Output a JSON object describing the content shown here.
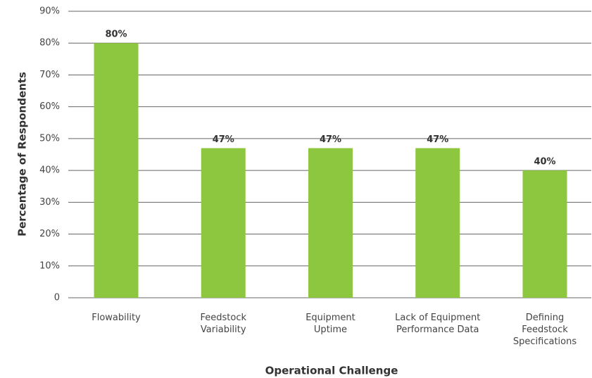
{
  "chart_data": {
    "type": "bar",
    "x_label": "Operational Challenge",
    "y_label": "Percentage of Respondents",
    "categories": [
      "Flowability",
      "Feedstock Variability",
      "Equipment Uptime",
      "Lack of Equipment Performance Data",
      "Defining Feedstock Specifications"
    ],
    "values": [
      80,
      47,
      47,
      47,
      40
    ],
    "value_labels": [
      "80%",
      "47%",
      "47%",
      "47%",
      "40%"
    ],
    "color": "#8dc63f",
    "ylim": [
      0,
      90
    ],
    "yticks": [
      0,
      {
        "value": 10,
        "label": "10%"
      },
      {
        "value": 20,
        "label": "20%"
      },
      {
        "value": 30,
        "label": "30%"
      },
      {
        "value": 40,
        "label": "40%"
      },
      {
        "value": 50,
        "label": "50%"
      },
      {
        "value": 60,
        "label": "60%"
      },
      {
        "value": 70,
        "label": "70%"
      },
      {
        "value": 80,
        "label": "80%"
      },
      {
        "value": 90,
        "label": "90%"
      }
    ],
    "grid": true
  }
}
